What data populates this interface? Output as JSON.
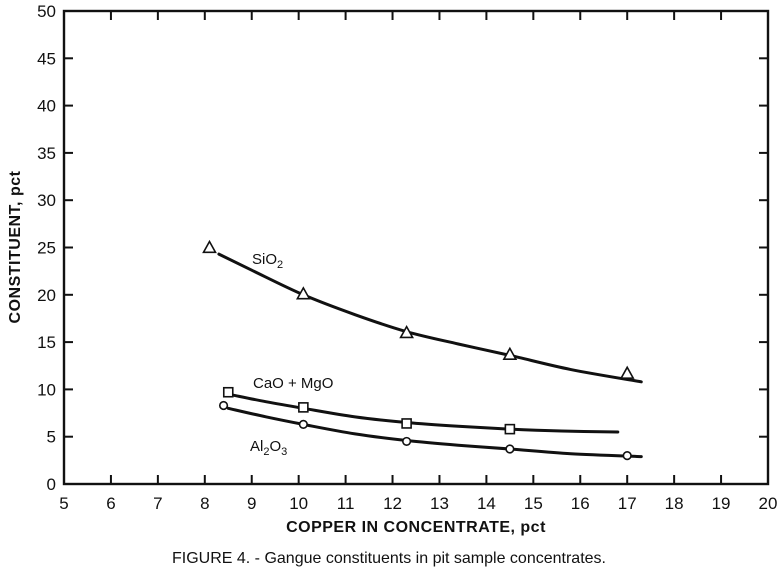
{
  "chart_data": {
    "type": "line",
    "title": "",
    "caption": "FIGURE 4. - Gangue constituents in pit sample concentrates.",
    "xlabel": "COPPER IN CONCENTRATE, pct",
    "ylabel": "CONSTITUENT, pct",
    "xlim": [
      5,
      20
    ],
    "ylim": [
      0,
      50
    ],
    "xticks": [
      5,
      6,
      7,
      8,
      9,
      10,
      11,
      12,
      13,
      14,
      15,
      16,
      17,
      18,
      19,
      20
    ],
    "yticks": [
      0,
      5,
      10,
      15,
      20,
      25,
      30,
      35,
      40,
      45,
      50
    ],
    "grid": false,
    "legend": "none",
    "series": [
      {
        "name": "SiO2",
        "label_main": "SiO",
        "label_sub": "2",
        "marker": "triangle",
        "points": [
          [
            8.1,
            25.0
          ],
          [
            10.1,
            20.1
          ],
          [
            12.3,
            16.0
          ],
          [
            14.5,
            13.7
          ],
          [
            17.0,
            11.7
          ]
        ],
        "curve": [
          [
            8.3,
            24.3
          ],
          [
            9.0,
            22.6
          ],
          [
            10.1,
            20.0
          ],
          [
            11.2,
            17.9
          ],
          [
            12.3,
            16.1
          ],
          [
            13.4,
            14.8
          ],
          [
            14.5,
            13.6
          ],
          [
            15.8,
            12.1
          ],
          [
            17.3,
            10.8
          ]
        ]
      },
      {
        "name": "CaO + MgO",
        "label_main": "CaO + MgO",
        "marker": "square",
        "points": [
          [
            8.5,
            9.7
          ],
          [
            10.1,
            8.1
          ],
          [
            12.3,
            6.4
          ],
          [
            14.5,
            5.8
          ]
        ],
        "curve": [
          [
            8.6,
            9.4
          ],
          [
            9.3,
            8.7
          ],
          [
            10.1,
            8.0
          ],
          [
            11.2,
            7.1
          ],
          [
            12.3,
            6.5
          ],
          [
            13.4,
            6.1
          ],
          [
            14.5,
            5.8
          ],
          [
            15.6,
            5.6
          ],
          [
            16.8,
            5.5
          ]
        ]
      },
      {
        "name": "Al2O3",
        "label_main": "Al",
        "label_sub1": "2",
        "label_mid": "O",
        "label_sub2": "3",
        "marker": "circle",
        "points": [
          [
            8.4,
            8.3
          ],
          [
            10.1,
            6.3
          ],
          [
            12.3,
            4.5
          ],
          [
            14.5,
            3.7
          ],
          [
            17.0,
            3.0
          ]
        ],
        "curve": [
          [
            8.5,
            8.0
          ],
          [
            9.3,
            7.1
          ],
          [
            10.1,
            6.3
          ],
          [
            11.2,
            5.3
          ],
          [
            12.3,
            4.6
          ],
          [
            13.4,
            4.1
          ],
          [
            14.5,
            3.7
          ],
          [
            15.8,
            3.2
          ],
          [
            17.3,
            2.9
          ]
        ]
      }
    ]
  }
}
